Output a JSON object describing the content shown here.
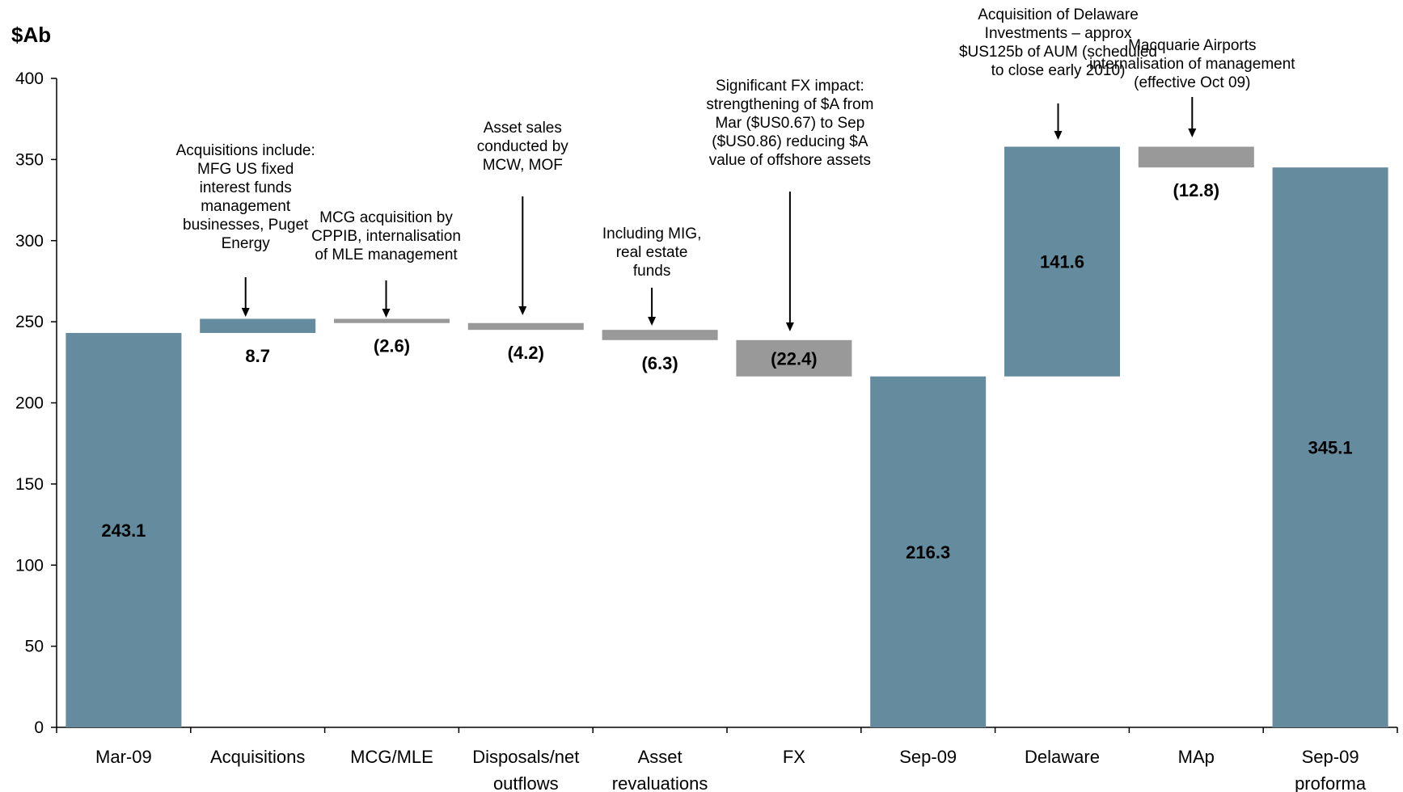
{
  "chart_data": {
    "type": "bar",
    "subtype": "waterfall",
    "ylabel": "$Ab",
    "ylim": [
      0,
      400
    ],
    "yticks": [
      0,
      50,
      100,
      150,
      200,
      250,
      300,
      350,
      400
    ],
    "grid": false,
    "categories": [
      [
        "Mar-09"
      ],
      [
        "Acquisitions"
      ],
      [
        "MCG/MLE"
      ],
      [
        "Disposals/net",
        "outflows"
      ],
      [
        "Asset",
        "revaluations"
      ],
      [
        "FX"
      ],
      [
        "Sep-09"
      ],
      [
        "Delaware"
      ],
      [
        "MAp"
      ],
      [
        "Sep-09",
        "proforma"
      ]
    ],
    "bars": [
      {
        "kind": "total",
        "low": 0,
        "high": 243.1,
        "label": "243.1",
        "color": "#648b9e"
      },
      {
        "kind": "increase",
        "low": 243.1,
        "high": 251.8,
        "label": "8.7",
        "color": "#648b9e"
      },
      {
        "kind": "decrease",
        "low": 249.2,
        "high": 251.8,
        "label": "(2.6)",
        "color": "#999999"
      },
      {
        "kind": "decrease",
        "low": 245.0,
        "high": 249.2,
        "label": "(4.2)",
        "color": "#999999"
      },
      {
        "kind": "decrease",
        "low": 238.7,
        "high": 245.0,
        "label": "(6.3)",
        "color": "#999999"
      },
      {
        "kind": "decrease",
        "low": 216.3,
        "high": 238.7,
        "label": "(22.4)",
        "color": "#999999"
      },
      {
        "kind": "total",
        "low": 0,
        "high": 216.3,
        "label": "216.3",
        "color": "#648b9e"
      },
      {
        "kind": "increase",
        "low": 216.3,
        "high": 357.9,
        "label": "141.6",
        "color": "#648b9e"
      },
      {
        "kind": "decrease",
        "low": 345.1,
        "high": 357.9,
        "label": "(12.8)",
        "color": "#999999"
      },
      {
        "kind": "total",
        "low": 0,
        "high": 345.1,
        "label": "345.1",
        "color": "#648b9e"
      }
    ],
    "annotations": [
      {
        "bar": 1,
        "text": "Acquisitions include:\nMFG US fixed\ninterest funds\nmanagement\nbusinesses, Puget\nEnergy"
      },
      {
        "bar": 2,
        "text": "MCG acquisition by\nCPPIB, internalisation\nof MLE management"
      },
      {
        "bar": 3,
        "text": "Asset sales\nconducted by\nMCW, MOF"
      },
      {
        "bar": 4,
        "text": "Including MIG,\nreal estate\nfunds"
      },
      {
        "bar": 5,
        "text": "Significant FX impact:\nstrengthening of $A from\nMar ($US0.67) to Sep\n($US0.86) reducing $A\nvalue of offshore assets"
      },
      {
        "bar": 7,
        "text": "Acquisition of Delaware\nInvestments – approx\n$US125b of AUM (scheduled\nto close early 2010)"
      },
      {
        "bar": 8,
        "text": "Macquarie Airports\ninternalisation of management\n(effective Oct 09)"
      }
    ]
  }
}
